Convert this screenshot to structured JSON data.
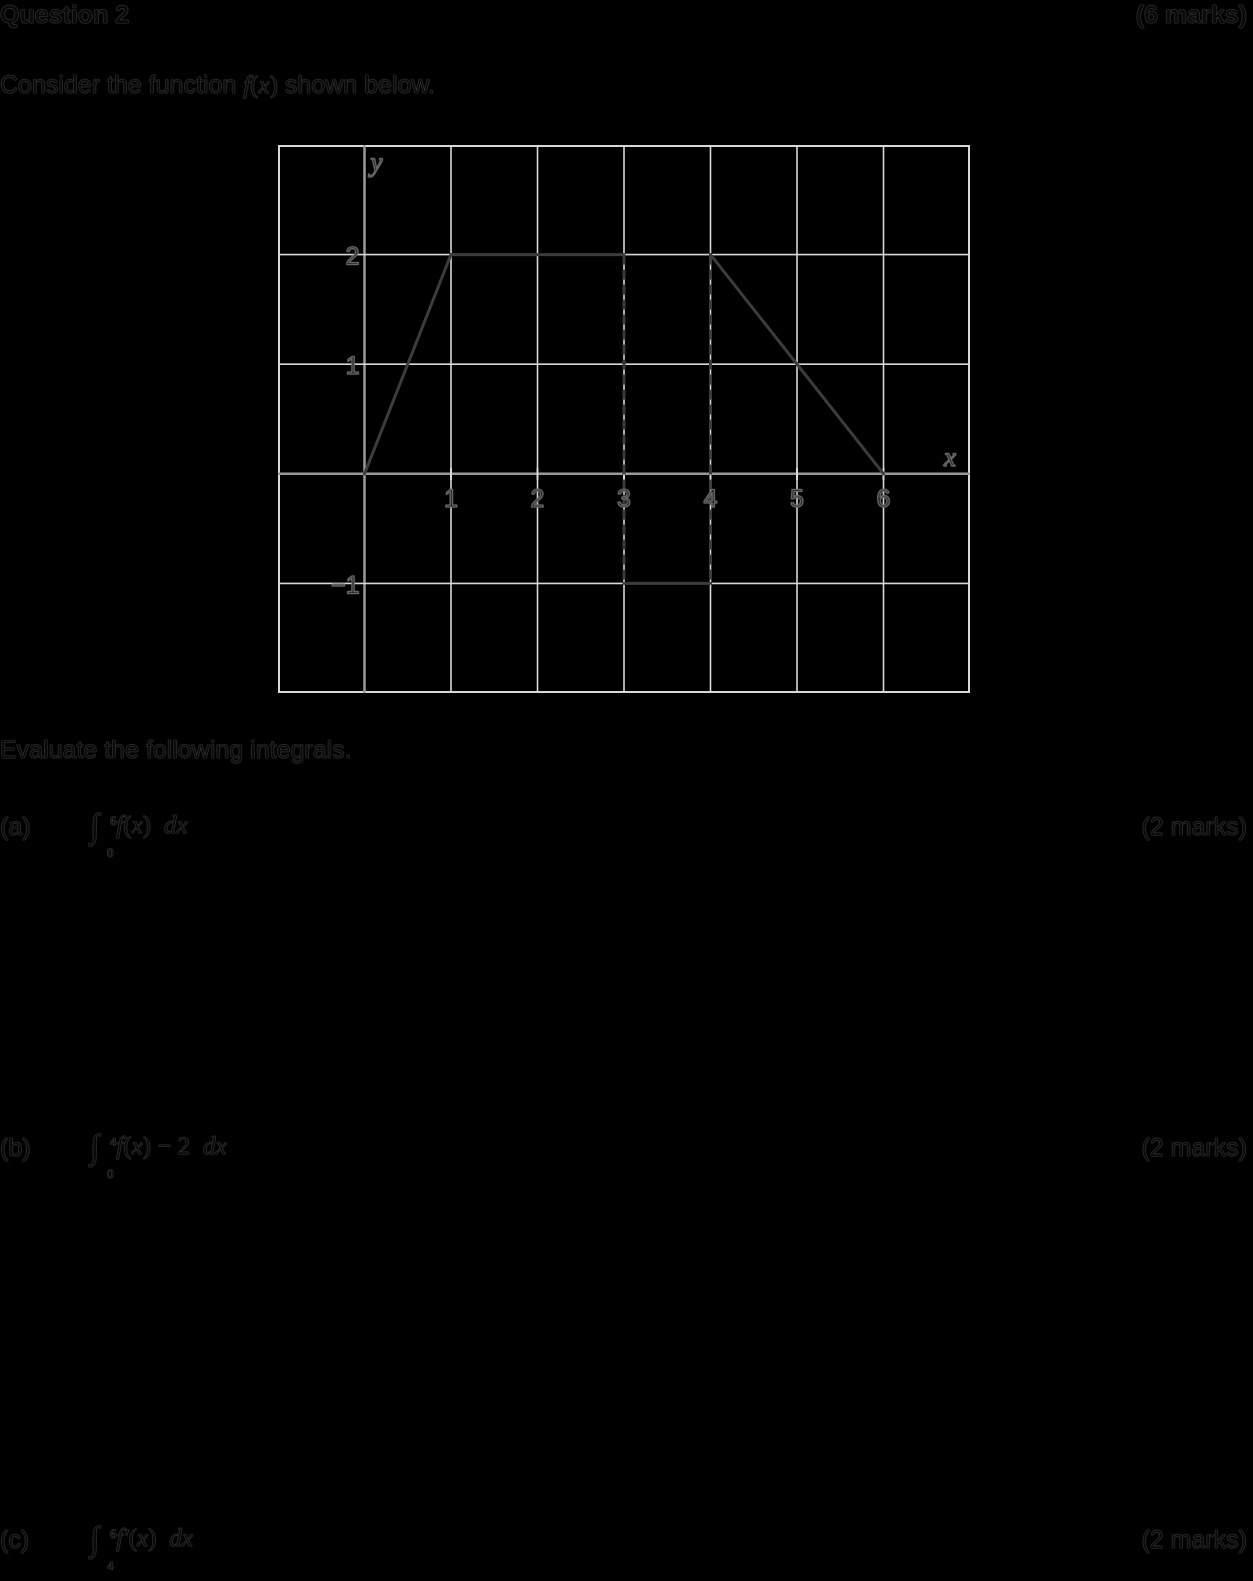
{
  "header": {
    "question_title": "Question 2",
    "total_marks": "(6 marks)"
  },
  "intro": {
    "before": "Consider the function ",
    "func_f": "f",
    "func_open": "(",
    "func_x": "x",
    "func_close": ")",
    "after": " shown below."
  },
  "graph": {
    "y_axis_label": "y",
    "x_axis_label": "x",
    "x_ticks": [
      "1",
      "2",
      "3",
      "4",
      "5",
      "6"
    ],
    "y_ticks": [
      "2",
      "1",
      "−1"
    ],
    "grid_x_range": [
      -1,
      7
    ],
    "grid_y_range": [
      -2,
      3
    ],
    "function_points": [
      [
        0,
        0
      ],
      [
        1,
        2
      ],
      [
        3,
        2
      ],
      [
        3,
        -1
      ],
      [
        4,
        -1
      ],
      [
        4,
        2
      ],
      [
        6,
        0
      ]
    ],
    "solid_segments": [
      [
        [
          0,
          0
        ],
        [
          1,
          2
        ]
      ],
      [
        [
          1,
          2
        ],
        [
          3,
          2
        ]
      ],
      [
        [
          3,
          -1
        ],
        [
          4,
          -1
        ]
      ],
      [
        [
          4,
          2
        ],
        [
          6,
          0
        ]
      ]
    ],
    "dashed_segments": [
      [
        [
          3,
          2
        ],
        [
          3,
          -1
        ]
      ],
      [
        [
          4,
          2
        ],
        [
          4,
          -1
        ]
      ]
    ],
    "colors": {
      "background": "#000000",
      "grid": "#d8d8d8",
      "curve": "#3c3c3c"
    }
  },
  "instruction": "Evaluate the following integrals.",
  "parts": [
    {
      "label": "(a)",
      "upper": "6",
      "lower": "0",
      "integrand_f": "f",
      "integrand_open": "(",
      "integrand_x": "x",
      "integrand_close": ")",
      "integrand_extra": "",
      "integrand_const": "",
      "d": "dx",
      "marks": "(2 marks)"
    },
    {
      "label": "(b)",
      "upper": "4",
      "lower": "0",
      "integrand_f": "f",
      "integrand_open": "(",
      "integrand_x": "x",
      "integrand_close": ")",
      "integrand_extra": " − ",
      "integrand_const": "2",
      "d": "dx",
      "marks": "(2 marks)"
    },
    {
      "label": "(c)",
      "upper": "6",
      "lower": "4",
      "integrand_f": "f′",
      "integrand_open": "(",
      "integrand_x": "x",
      "integrand_close": ")",
      "integrand_extra": "",
      "integrand_const": "",
      "d": "dx",
      "marks": "(2 marks)"
    }
  ]
}
